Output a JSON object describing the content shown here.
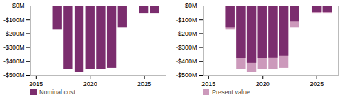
{
  "chart_data": [
    {
      "type": "bar",
      "x": [
        2017,
        2018,
        2019,
        2020,
        2021,
        2022,
        2023,
        2024,
        2025,
        2026
      ],
      "series": [
        {
          "name": "Nominal cost",
          "color": "#7B2D6E",
          "values": [
            -170,
            -460,
            -480,
            -460,
            -460,
            -450,
            -155,
            0,
            -55,
            -55
          ]
        }
      ],
      "xlim": [
        2014.5,
        2027.0
      ],
      "xticks": [
        2015,
        2020,
        2025
      ],
      "ylim": [
        -500,
        0
      ],
      "yticks": [
        {
          "value": 0,
          "label": "$0M"
        },
        {
          "value": -100,
          "label": "-$100M"
        },
        {
          "value": -200,
          "label": "-$200M"
        },
        {
          "value": -300,
          "label": "-$300M"
        },
        {
          "value": -400,
          "label": "-$400M"
        },
        {
          "value": -500,
          "label": "-$500M"
        }
      ],
      "grid": false,
      "stacked": false,
      "legend": "lower left"
    },
    {
      "type": "bar",
      "x": [
        2017,
        2018,
        2019,
        2020,
        2021,
        2022,
        2023,
        2024,
        2025,
        2026
      ],
      "series": [
        {
          "name": "Present value",
          "color": "#CC99BB",
          "values": [
            -170,
            -460,
            -480,
            -460,
            -460,
            -450,
            -155,
            0,
            -55,
            -55
          ]
        },
        {
          "color": "#7B2D6E",
          "values": [
            -155,
            -380,
            -410,
            -380,
            -375,
            -360,
            -115,
            0,
            -45,
            -45
          ]
        }
      ],
      "xlim": [
        2014.5,
        2027.0
      ],
      "xticks": [
        2015,
        2020,
        2025
      ],
      "ylim": [
        -500,
        0
      ],
      "yticks": [
        {
          "value": 0,
          "label": "$0M"
        },
        {
          "value": -100,
          "label": "-$100M"
        },
        {
          "value": -200,
          "label": "-$200M"
        },
        {
          "value": -300,
          "label": "-$300M"
        },
        {
          "value": -400,
          "label": "-$400M"
        },
        {
          "value": -500,
          "label": "-$500M"
        }
      ],
      "grid": false,
      "stacked": false,
      "legend": "lower left"
    }
  ]
}
